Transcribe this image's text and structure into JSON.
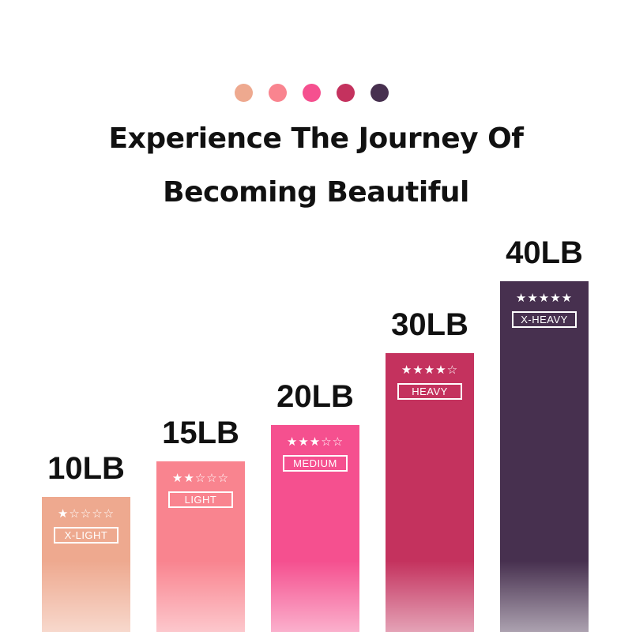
{
  "header": {
    "title_line1": "Experience The Journey Of",
    "title_line2": "Becoming Beautiful"
  },
  "chart_data": {
    "type": "bar",
    "categories": [
      "X-LIGHT",
      "LIGHT",
      "MEDIUM",
      "HEAVY",
      "X-HEAVY"
    ],
    "values": [
      10,
      15,
      20,
      30,
      40
    ],
    "value_labels": [
      "10LB",
      "15LB",
      "20LB",
      "30LB",
      "40LB"
    ],
    "stars": [
      1,
      2,
      3,
      4,
      5
    ],
    "max_stars": 5,
    "colors": [
      "#eea98f",
      "#f9848f",
      "#f5508f",
      "#c4325e",
      "#47304f"
    ],
    "title": "",
    "xlabel": "",
    "ylabel": "",
    "grid": false
  }
}
